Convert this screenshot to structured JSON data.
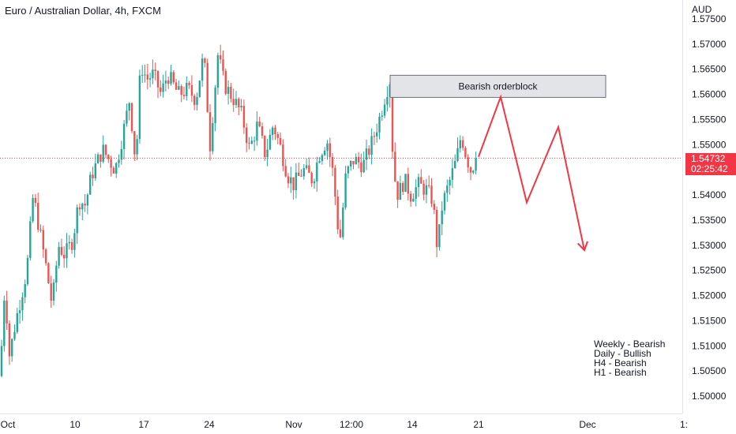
{
  "header": {
    "title": "Euro / Australian Dollar, 4h, FXCM",
    "currency": "AUD"
  },
  "price_tag": {
    "price": "1.54732",
    "countdown": "02:25:42"
  },
  "bias_note": [
    "Weekly - Bearish",
    "Daily - Bullish",
    "H4 - Bearish",
    "H1 - Bearish"
  ],
  "colors": {
    "up": "#26a69a",
    "down": "#ef5350",
    "projection": "#f23645",
    "box_fill": "#e3e4e8",
    "box_stroke": "#6b6f7a",
    "grid": "#f0f3fa"
  },
  "chart_data": {
    "type": "candlestick",
    "title": "Euro / Australian Dollar, 4h, FXCM",
    "ylabel": "AUD",
    "ylim": [
      1.4965,
      1.5772
    ],
    "y_ticks": [
      "1.57500",
      "1.57000",
      "1.56500",
      "1.56000",
      "1.55500",
      "1.55000",
      "1.54000",
      "1.53500",
      "1.53000",
      "1.52500",
      "1.52000",
      "1.51500",
      "1.51000",
      "1.50500",
      "1.50000"
    ],
    "x_ticks": [
      "Oct",
      "10",
      "17",
      "24",
      "Nov",
      "12:00",
      "14",
      "21",
      "Dec",
      "1:"
    ],
    "grid": false,
    "last_price": 1.54732,
    "candle_path": [
      [
        0,
        1.504
      ],
      [
        6,
        1.522
      ],
      [
        12,
        1.508
      ],
      [
        20,
        1.515
      ],
      [
        34,
        1.525
      ],
      [
        42,
        1.54
      ],
      [
        50,
        1.533
      ],
      [
        58,
        1.526
      ],
      [
        66,
        1.518
      ],
      [
        74,
        1.53
      ],
      [
        82,
        1.528
      ],
      [
        92,
        1.531
      ],
      [
        100,
        1.539
      ],
      [
        108,
        1.538
      ],
      [
        116,
        1.544
      ],
      [
        130,
        1.549
      ],
      [
        146,
        1.545
      ],
      [
        158,
        1.554
      ],
      [
        164,
        1.559
      ],
      [
        172,
        1.546
      ],
      [
        178,
        1.566
      ],
      [
        186,
        1.563
      ],
      [
        194,
        1.564
      ],
      [
        204,
        1.56
      ],
      [
        212,
        1.564
      ],
      [
        226,
        1.56
      ],
      [
        238,
        1.561
      ],
      [
        248,
        1.559
      ],
      [
        258,
        1.568
      ],
      [
        266,
        1.55
      ],
      [
        276,
        1.568
      ],
      [
        284,
        1.562
      ],
      [
        296,
        1.559
      ],
      [
        306,
        1.556
      ],
      [
        316,
        1.549
      ],
      [
        326,
        1.554
      ],
      [
        336,
        1.548
      ],
      [
        346,
        1.554
      ],
      [
        356,
        1.549
      ],
      [
        364,
        1.544
      ],
      [
        372,
        1.542
      ],
      [
        384,
        1.545
      ],
      [
        396,
        1.543
      ],
      [
        404,
        1.548
      ],
      [
        414,
        1.551
      ],
      [
        422,
        1.544
      ],
      [
        430,
        1.53
      ],
      [
        438,
        1.544
      ],
      [
        448,
        1.547
      ],
      [
        460,
        1.546
      ],
      [
        470,
        1.55
      ],
      [
        482,
        1.556
      ],
      [
        488,
        1.56
      ],
      [
        494,
        1.563
      ],
      [
        498,
        1.545
      ],
      [
        504,
        1.54
      ],
      [
        512,
        1.543
      ],
      [
        520,
        1.54
      ],
      [
        530,
        1.542
      ],
      [
        540,
        1.541
      ],
      [
        548,
        1.539
      ],
      [
        554,
        1.529
      ],
      [
        560,
        1.538
      ],
      [
        568,
        1.542
      ],
      [
        578,
        1.547
      ],
      [
        584,
        1.552
      ],
      [
        590,
        1.548
      ],
      [
        596,
        1.545
      ],
      [
        604,
        1.5473
      ]
    ],
    "annotations": [
      {
        "type": "box",
        "label": "Bearish orderblock",
        "x_range": [
          494,
          767
        ],
        "y_range": [
          1.5594,
          1.5638
        ]
      },
      {
        "type": "projection_path",
        "points": [
          [
            606,
            1.5476
          ],
          [
            634,
            1.5595
          ],
          [
            667,
            1.5385
          ],
          [
            707,
            1.5535
          ],
          [
            740,
            1.529
          ]
        ]
      }
    ]
  }
}
